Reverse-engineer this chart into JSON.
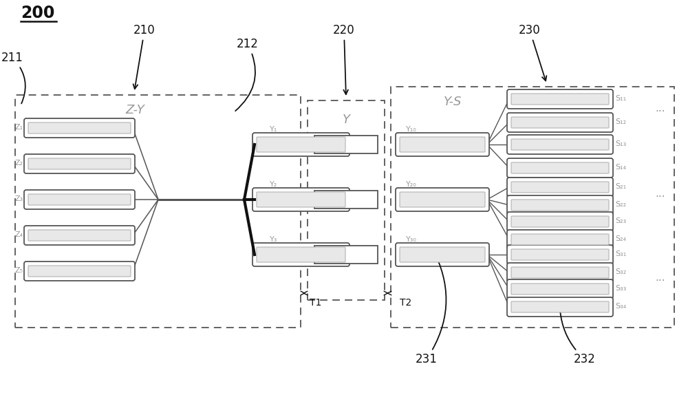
{
  "bg_color": "#ffffff",
  "lc": "#555555",
  "dlc": "#111111",
  "gc": "#999999",
  "figure_label": "200",
  "ref210": "210",
  "ref211": "211",
  "ref212": "212",
  "ref220": "220",
  "ref230": "230",
  "ref231": "231",
  "ref232": "232",
  "label_ZY": "Z-Y",
  "label_Y": "Y",
  "label_YS": "Y-S",
  "t1": "T1",
  "t2": "T2",
  "z_labels": [
    "Z₁",
    "Z₂",
    "Z₃",
    "Z₄",
    "Z₅"
  ],
  "y_labels": [
    "Y₁",
    "Y₂",
    "Y₃"
  ],
  "y_src_labels": [
    "Y₁₀",
    "Y₂₀",
    "Y₃₀"
  ],
  "s1": [
    "S₁₁",
    "S₁₂",
    "S₁₃",
    "S₁₄"
  ],
  "s2": [
    "S₂₁",
    "S₂₂",
    "S₂₃",
    "S₂₄"
  ],
  "s3": [
    "S₃₁",
    "S₃₂",
    "S₃₃",
    "S₃₄"
  ],
  "fig_w": 10.0,
  "fig_h": 5.74,
  "dpi": 100
}
